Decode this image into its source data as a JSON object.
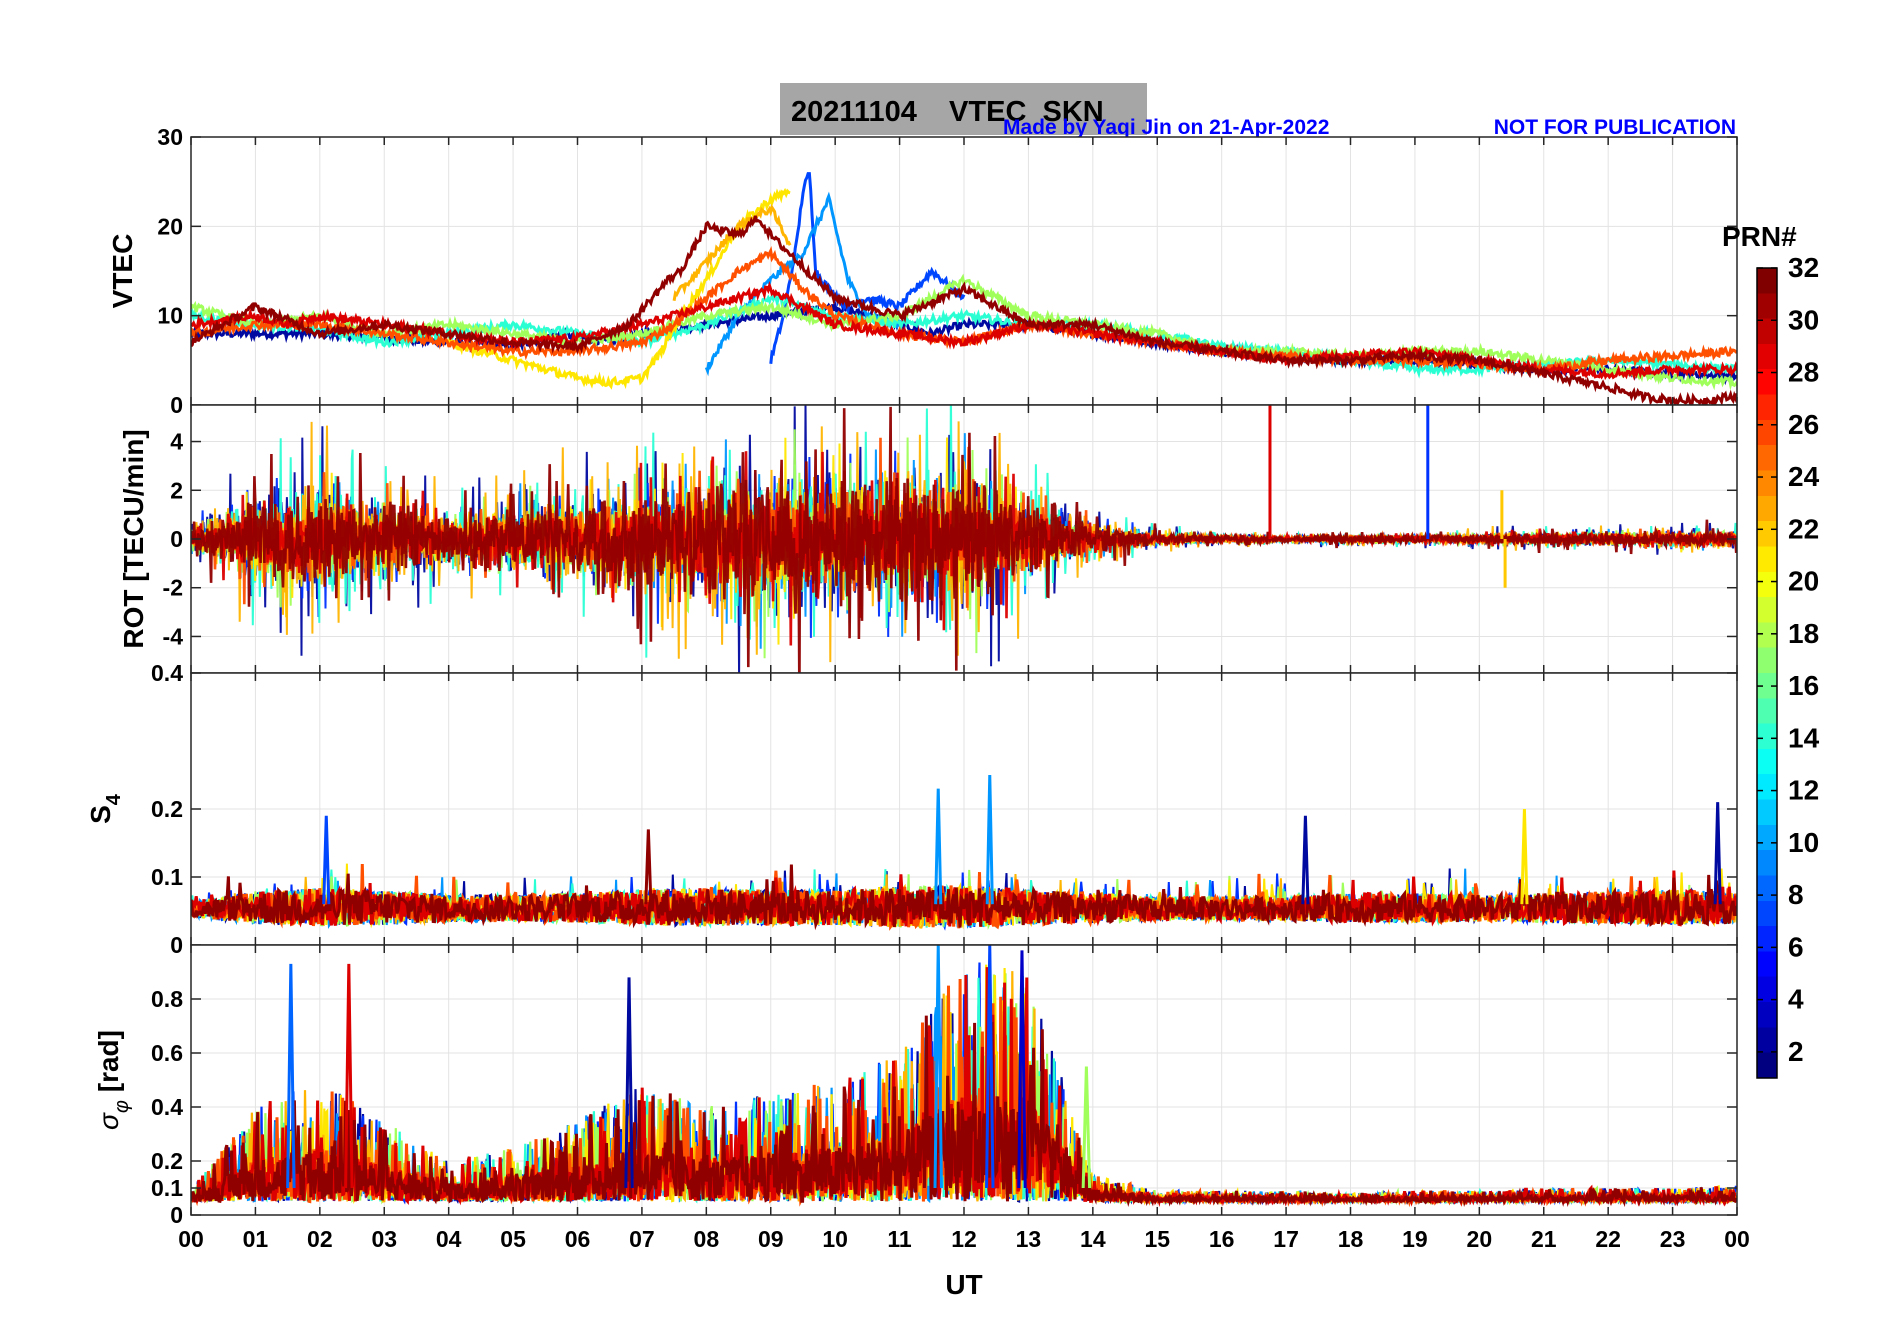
{
  "header": {
    "title": "20211104    VTEC  SKN",
    "credit": "Made by Yaqi Jin on 21-Apr-2022",
    "notice": "NOT FOR PUBLICATION"
  },
  "colorbar": {
    "label": "PRN#",
    "ticks": [
      "2",
      "4",
      "6",
      "8",
      "10",
      "12",
      "14",
      "16",
      "18",
      "20",
      "22",
      "24",
      "26",
      "28",
      "30",
      "32"
    ],
    "range": [
      1,
      32
    ],
    "colormap": "jet"
  },
  "xaxis": {
    "label": "UT",
    "ticks": [
      "00",
      "01",
      "02",
      "03",
      "04",
      "05",
      "06",
      "07",
      "08",
      "09",
      "10",
      "11",
      "12",
      "13",
      "14",
      "15",
      "16",
      "17",
      "18",
      "19",
      "20",
      "21",
      "22",
      "23",
      "00"
    ],
    "range": [
      0,
      24
    ]
  },
  "chart_data": [
    {
      "type": "line",
      "name": "vtec",
      "ylabel": "VTEC",
      "ylim": [
        0,
        30
      ],
      "yticks": [
        "0",
        "10",
        "20",
        "30"
      ],
      "grid": true,
      "series": [
        {
          "prn": 2,
          "color": "#000aa0",
          "x": [
            0,
            1,
            2,
            3,
            4,
            5,
            5.7,
            6.5,
            7,
            8,
            9,
            10,
            11,
            11.5,
            12,
            13,
            14,
            15,
            16,
            17,
            18,
            19,
            20,
            21,
            22,
            23,
            24
          ],
          "y": [
            8,
            8,
            8,
            7.5,
            7,
            6.5,
            8,
            7,
            8,
            9,
            10,
            11,
            9,
            8,
            9,
            9,
            8,
            7,
            6,
            5.5,
            5,
            5,
            4.5,
            4,
            4,
            3.5,
            3.2
          ]
        },
        {
          "prn": 6,
          "color": "#0046ff",
          "x": [
            9,
            9.2,
            9.4,
            9.5,
            9.6,
            9.7,
            9.9,
            10.2,
            10.5,
            11,
            11.5,
            12
          ],
          "y": [
            5,
            10,
            18,
            24,
            26,
            15,
            13,
            11,
            12,
            11,
            15,
            12
          ]
        },
        {
          "prn": 9,
          "color": "#0096ff",
          "x": [
            8,
            8.5,
            9,
            9.5,
            9.9,
            10.2,
            10.5,
            11
          ],
          "y": [
            4,
            10,
            14,
            17,
            23,
            14,
            10,
            9
          ]
        },
        {
          "prn": 13,
          "color": "#2affd4",
          "x": [
            0,
            1,
            2,
            3,
            4,
            5,
            6,
            7,
            8,
            9,
            10,
            11,
            12,
            13,
            14,
            15,
            16,
            17,
            18,
            19,
            20,
            21,
            22,
            23,
            24
          ],
          "y": [
            10,
            9,
            8.5,
            7,
            8,
            9,
            8,
            7,
            9,
            12,
            10,
            9,
            10,
            9,
            9,
            8,
            6.5,
            6,
            5,
            4,
            4,
            4.5,
            5,
            4.5,
            4
          ]
        },
        {
          "prn": 17,
          "color": "#a0ff5a",
          "x": [
            0,
            1,
            2,
            3,
            4,
            5,
            6,
            7,
            8,
            9,
            10,
            11,
            12,
            13,
            14,
            15,
            16,
            17,
            18,
            19,
            20,
            21,
            22,
            23,
            24
          ],
          "y": [
            11,
            9,
            10,
            8,
            9,
            8,
            7,
            8,
            10,
            11,
            9,
            10,
            14,
            10,
            9,
            8,
            6,
            6,
            5.5,
            6,
            6,
            5,
            4,
            3,
            2.5
          ]
        },
        {
          "prn": 21,
          "color": "#ffe600",
          "x": [
            4,
            5,
            5.5,
            6,
            6.5,
            7,
            7.3,
            7.6,
            8,
            8.5,
            9,
            9.3
          ],
          "y": [
            7,
            5,
            4,
            3,
            2.5,
            3,
            6,
            10,
            14,
            20,
            23,
            24
          ]
        },
        {
          "prn": 23,
          "color": "#ffb400",
          "x": [
            7.5,
            8,
            8.5,
            9,
            9.3
          ],
          "y": [
            12,
            16,
            20,
            22,
            18
          ]
        },
        {
          "prn": 26,
          "color": "#ff5000",
          "x": [
            0,
            1,
            2,
            3,
            4,
            5,
            6,
            7,
            7.5,
            8,
            8.5,
            9,
            9.5,
            10,
            11,
            12,
            13,
            14,
            15,
            16,
            17,
            18,
            19,
            20,
            21,
            22,
            23,
            24
          ],
          "y": [
            8,
            9,
            9,
            8,
            7,
            6,
            6,
            7,
            9,
            12,
            15,
            17,
            13,
            10,
            8,
            7,
            9,
            8,
            7,
            6,
            5.5,
            5,
            5,
            4.5,
            4,
            5,
            5.5,
            6
          ]
        },
        {
          "prn": 29,
          "color": "#dc0000",
          "x": [
            0,
            1,
            1.5,
            2,
            3,
            4,
            5,
            6,
            7,
            8,
            9,
            10,
            11,
            12,
            13,
            14,
            15,
            16,
            17,
            18,
            19,
            20,
            21,
            22,
            23,
            24
          ],
          "y": [
            9,
            10,
            9,
            10,
            9,
            8,
            7,
            7.5,
            9,
            11,
            13,
            9,
            8,
            7,
            9,
            8,
            7,
            6,
            5,
            5.5,
            6,
            5,
            4,
            3.5,
            4,
            4
          ]
        },
        {
          "prn": 31,
          "color": "#910000",
          "x": [
            0,
            1,
            2,
            3,
            4,
            5,
            6,
            6.8,
            7.4,
            7.6,
            8,
            8.5,
            8.8,
            9,
            10,
            11,
            12,
            12.5,
            13,
            14,
            15,
            16,
            17,
            18,
            19,
            20,
            21,
            22,
            22.5,
            23,
            23.5,
            24
          ],
          "y": [
            7,
            11,
            8,
            9,
            8,
            7,
            6.5,
            9,
            14,
            15,
            20,
            19,
            21,
            19,
            12,
            10,
            13,
            11,
            9,
            9,
            7,
            6,
            5,
            5,
            5.5,
            5,
            3.5,
            2,
            1,
            0.5,
            0.5,
            1
          ]
        }
      ]
    },
    {
      "type": "line",
      "name": "rot",
      "ylabel": "ROT [TECU/min]",
      "ylim": [
        -5.5,
        5.5
      ],
      "yticks": [
        "-4",
        "-2",
        "0",
        "2",
        "4"
      ],
      "grid": true,
      "spikes": [
        {
          "prn": 29,
          "color": "#dc0000",
          "x": 16.75,
          "y": 5.5
        },
        {
          "prn": 5,
          "color": "#0032ff",
          "x": 19.2,
          "y": 5.5
        },
        {
          "prn": 22,
          "color": "#ffc800",
          "x": 20.35,
          "y": 2
        },
        {
          "prn": 22,
          "color": "#ffc800",
          "x": 20.4,
          "y": -2
        }
      ],
      "envelope": {
        "x": [
          0,
          1,
          2,
          3,
          4,
          5,
          6,
          7,
          8,
          9,
          10,
          11,
          12,
          13,
          14,
          15,
          16,
          17,
          18,
          19,
          20,
          21,
          22,
          23,
          24
        ],
        "amplitude": [
          0.8,
          3.5,
          4,
          3,
          2,
          2.5,
          3,
          4,
          4.5,
          5.5,
          5,
          4.5,
          5.5,
          3,
          1.2,
          0.5,
          0.3,
          0.2,
          0.3,
          0.3,
          0.4,
          0.5,
          0.5,
          0.6,
          0.6
        ]
      }
    },
    {
      "type": "line",
      "name": "s4",
      "ylabel": "S4",
      "ylim": [
        0,
        0.4
      ],
      "yticks": [
        "0",
        "0.1",
        "0.2"
      ],
      "grid": true,
      "baseline": 0.05,
      "peaks": [
        {
          "x": 2.1,
          "y": 0.19,
          "color": "#0046ff"
        },
        {
          "x": 7.1,
          "y": 0.17,
          "color": "#910000"
        },
        {
          "x": 11.6,
          "y": 0.23,
          "color": "#0096ff"
        },
        {
          "x": 12.4,
          "y": 0.25,
          "color": "#0096ff"
        },
        {
          "x": 17.3,
          "y": 0.19,
          "color": "#000aa0"
        },
        {
          "x": 20.7,
          "y": 0.2,
          "color": "#ffe600"
        },
        {
          "x": 23.7,
          "y": 0.21,
          "color": "#000aa0"
        }
      ]
    },
    {
      "type": "line",
      "name": "sigma-phi",
      "ylabel": "σφ [rad]",
      "ylim": [
        0,
        1
      ],
      "yticks": [
        "0",
        "0.1",
        "0.2",
        "0.4",
        "0.6",
        "0.8"
      ],
      "grid": true,
      "peaks": [
        {
          "x": 1.55,
          "y": 0.93,
          "color": "#0064ff"
        },
        {
          "x": 2.45,
          "y": 0.93,
          "color": "#dc0000"
        },
        {
          "x": 6.8,
          "y": 0.88,
          "color": "#000aa0"
        },
        {
          "x": 11.6,
          "y": 1.0,
          "color": "#0096ff"
        },
        {
          "x": 12.4,
          "y": 1.0,
          "color": "#0046ff"
        },
        {
          "x": 12.9,
          "y": 0.98,
          "color": "#0000c8"
        },
        {
          "x": 13.9,
          "y": 0.55,
          "color": "#a0ff5a"
        }
      ]
    }
  ]
}
